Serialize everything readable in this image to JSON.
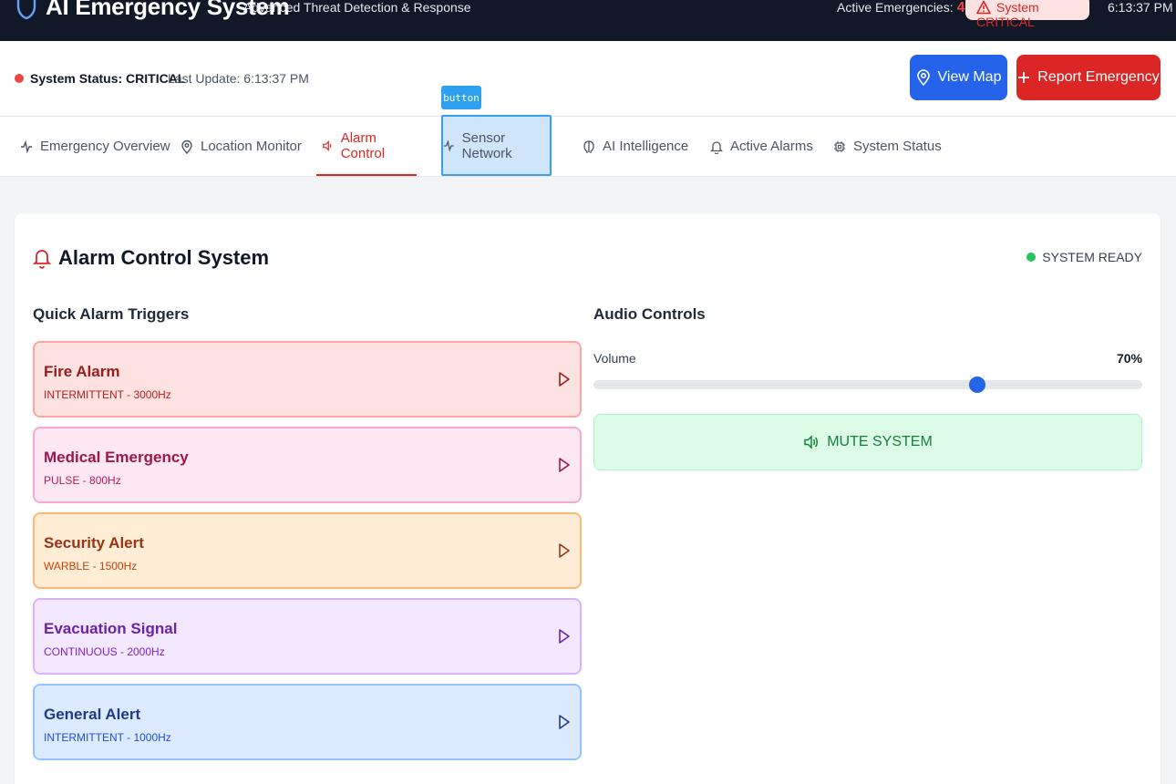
{
  "header": {
    "app_title": "AI Emergency System",
    "subtitle": "Advanced Threat Detection & Response",
    "active_label": "Active Emergencies:",
    "active_count": "4",
    "critical_badge": "System CRITICAL",
    "clock": "6:13:37 PM"
  },
  "status": {
    "system_status": "System Status: CRITICAL",
    "last_update": "Last Update: 6:13:37 PM",
    "status_color": "#ef4444"
  },
  "actions": {
    "view_map": "View Map",
    "report_emergency": "Report Emergency"
  },
  "tooltip": "button",
  "tabs": [
    {
      "label": "Emergency Overview",
      "icon": "activity-icon"
    },
    {
      "label": "Location Monitor",
      "icon": "map-pin-icon"
    },
    {
      "label": "Alarm Control",
      "icon": "speaker-icon",
      "active": true
    },
    {
      "label": "Sensor Network",
      "icon": "activity-icon"
    },
    {
      "label": "AI Intelligence",
      "icon": "brain-icon"
    },
    {
      "label": "Active Alarms",
      "icon": "bell-icon"
    },
    {
      "label": "System Status",
      "icon": "cpu-icon"
    }
  ],
  "panel": {
    "title": "Alarm Control System",
    "ready": "SYSTEM READY",
    "quick_heading": "Quick Alarm Triggers",
    "audio_heading": "Audio Controls",
    "volume_label": "Volume",
    "volume_value": "70%",
    "volume_level": 0.7,
    "mute_label": "MUTE SYSTEM"
  },
  "alarms": [
    {
      "name": "Fire Alarm",
      "detail": "INTERMITTENT - 3000Hz",
      "bg": "#fee2e2",
      "border": "#fca5a5",
      "text": "#991b1b",
      "sub": "#b91c1c"
    },
    {
      "name": "Medical Emergency",
      "detail": "PULSE - 800Hz",
      "bg": "#fce7f3",
      "border": "#f9a8d4",
      "text": "#9d174d",
      "sub": "#be185d"
    },
    {
      "name": "Security Alert",
      "detail": "WARBLE - 1500Hz",
      "bg": "#ffedd5",
      "border": "#fdba74",
      "text": "#9a3412",
      "sub": "#c2410c"
    },
    {
      "name": "Evacuation Signal",
      "detail": "CONTINUOUS - 2000Hz",
      "bg": "#f3e8ff",
      "border": "#d8b4fe",
      "text": "#6b21a8",
      "sub": "#7e22ce"
    },
    {
      "name": "General Alert",
      "detail": "INTERMITTENT - 1000Hz",
      "bg": "#dbeafe",
      "border": "#93c5fd",
      "text": "#1e3a8a",
      "sub": "#1d4ed8"
    }
  ]
}
